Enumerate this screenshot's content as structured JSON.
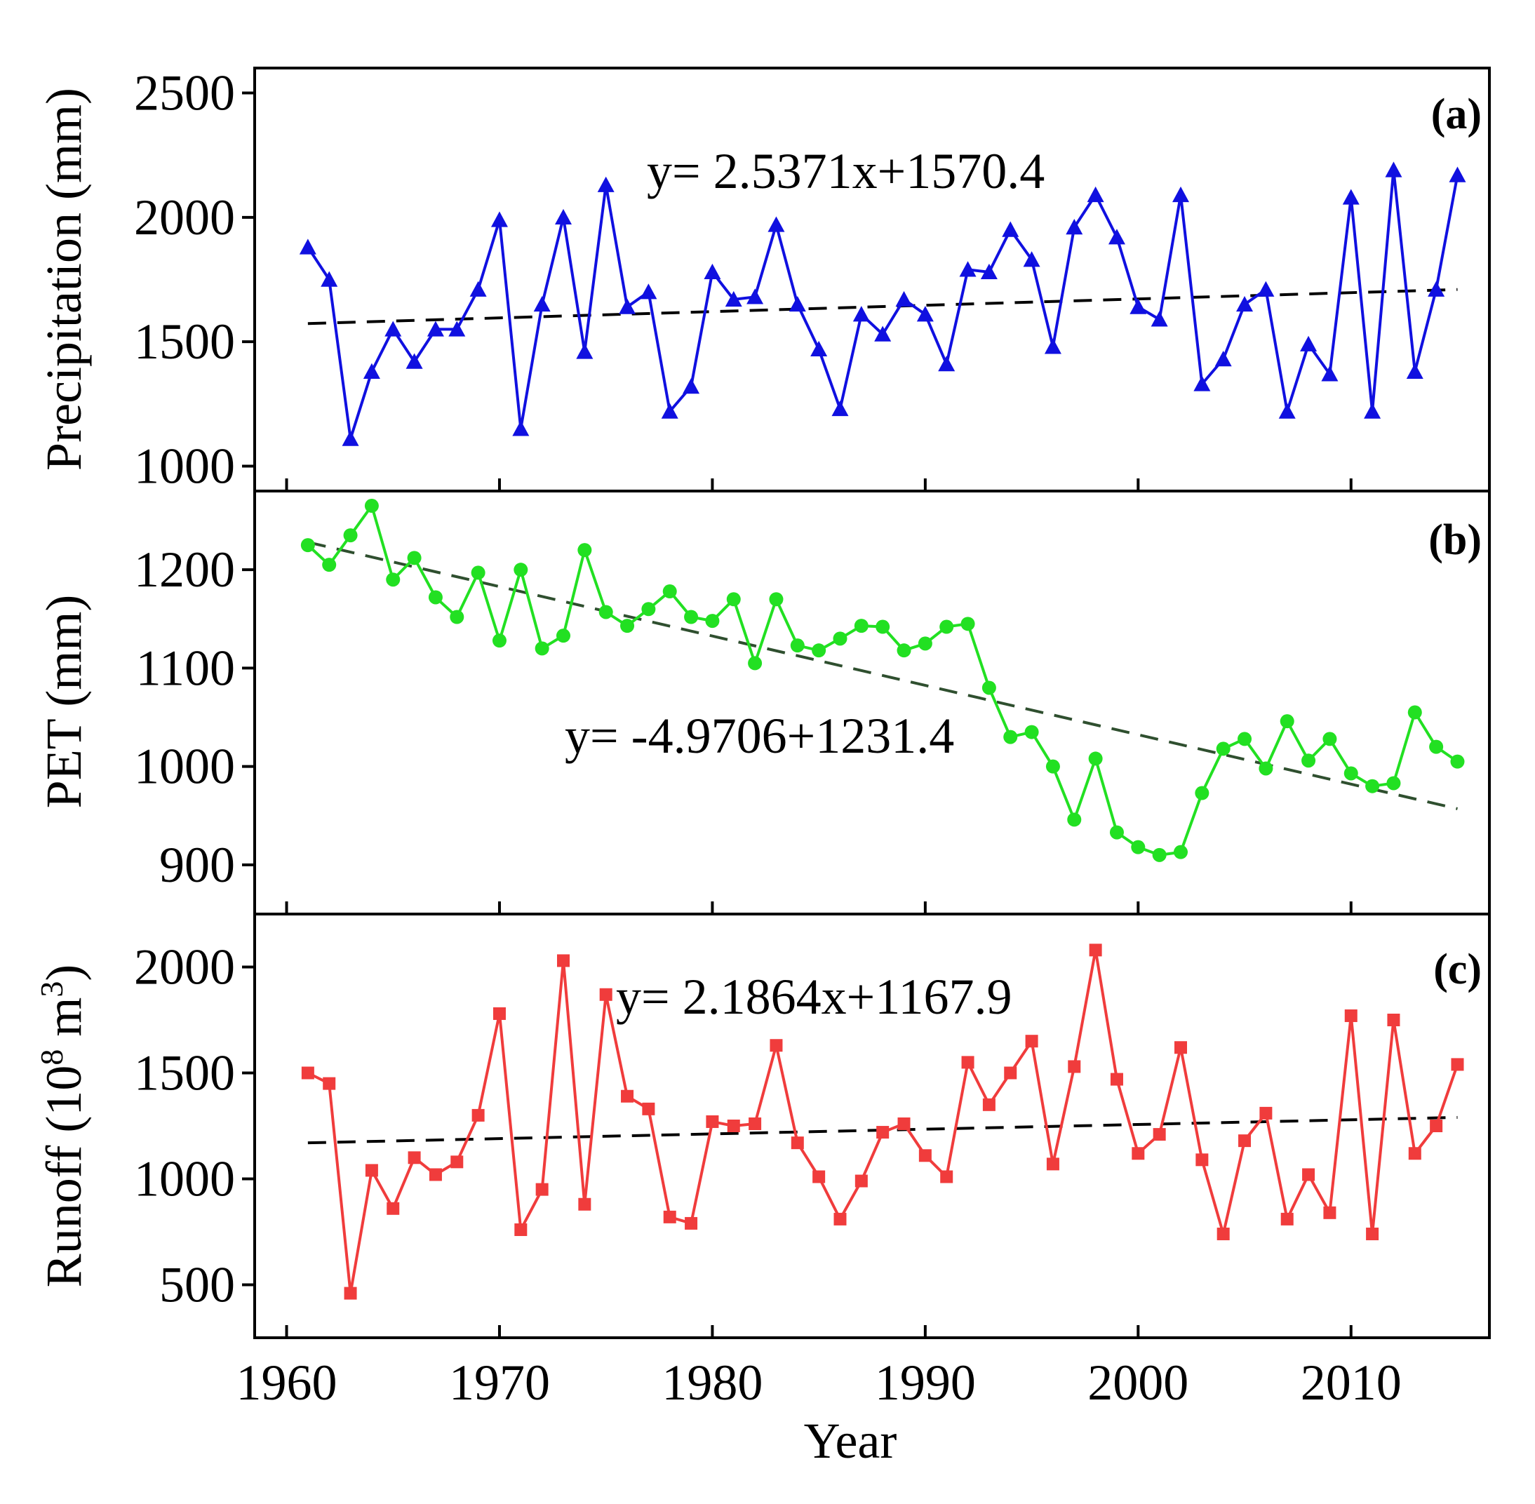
{
  "chart_data": {
    "type": "line",
    "xlabel": "Year",
    "x_ticks": [
      1960,
      1970,
      1980,
      1990,
      2000,
      2010
    ],
    "xlim": [
      1958.5,
      2016.5
    ],
    "x": [
      1961,
      1962,
      1963,
      1964,
      1965,
      1966,
      1967,
      1968,
      1969,
      1970,
      1971,
      1972,
      1973,
      1974,
      1975,
      1976,
      1977,
      1978,
      1979,
      1980,
      1981,
      1982,
      1983,
      1984,
      1985,
      1986,
      1987,
      1988,
      1989,
      1990,
      1991,
      1992,
      1993,
      1994,
      1995,
      1996,
      1997,
      1998,
      1999,
      2000,
      2001,
      2002,
      2003,
      2004,
      2005,
      2006,
      2007,
      2008,
      2009,
      2010,
      2011,
      2012,
      2013,
      2014,
      2015
    ],
    "panels": [
      {
        "label": "(a)",
        "ylabel": "Precipitation (mm)",
        "ylim": [
          900,
          2600
        ],
        "y_ticks": [
          1000,
          1500,
          2000,
          2500
        ],
        "marker": "triangle",
        "color": "#1010e0",
        "trend_color": "#000000",
        "equation": "y= 2.5371x+1570.4",
        "trend": {
          "start": [
            1961,
            1573
          ],
          "end": [
            2015,
            1710
          ]
        },
        "values": [
          1880,
          1750,
          1110,
          1380,
          1550,
          1420,
          1550,
          1550,
          1710,
          1990,
          1150,
          1650,
          2000,
          1460,
          2130,
          1640,
          1700,
          1220,
          1320,
          1780,
          1670,
          1680,
          1970,
          1650,
          1470,
          1230,
          1610,
          1530,
          1670,
          1610,
          1410,
          1790,
          1780,
          1950,
          1830,
          1480,
          1960,
          2090,
          1920,
          1640,
          1590,
          2090,
          1330,
          1430,
          1650,
          1710,
          1220,
          1490,
          1370,
          2080,
          1220,
          2190,
          1380,
          1710,
          2170
        ]
      },
      {
        "label": "(b)",
        "ylabel": "PET (mm)",
        "ylim": [
          850,
          1280
        ],
        "y_ticks": [
          900,
          1000,
          1100,
          1200
        ],
        "marker": "circle",
        "color": "#22e022",
        "trend_color": "#2f4f2f",
        "equation": "y= -4.9706+1231.4",
        "trend": {
          "start": [
            1961,
            1228
          ],
          "end": [
            2015,
            957
          ]
        },
        "values": [
          1225,
          1205,
          1235,
          1265,
          1190,
          1212,
          1172,
          1152,
          1197,
          1128,
          1200,
          1120,
          1133,
          1220,
          1157,
          1143,
          1160,
          1178,
          1152,
          1148,
          1170,
          1105,
          1170,
          1123,
          1118,
          1130,
          1143,
          1142,
          1118,
          1125,
          1142,
          1145,
          1080,
          1030,
          1035,
          1000,
          946,
          1008,
          933,
          918,
          910,
          913,
          973,
          1018,
          1028,
          998,
          1046,
          1006,
          1028,
          993,
          980,
          983,
          1055,
          1020,
          1005
        ]
      },
      {
        "label": "(c)",
        "ylabel_main": "Runoff (10",
        "ylabel_sup1": "8",
        "ylabel_mid": " m",
        "ylabel_sup2": "3",
        "ylabel_end": ")",
        "ylim": [
          250,
          2250
        ],
        "y_ticks": [
          500,
          1000,
          1500,
          2000
        ],
        "marker": "square",
        "color": "#f03c3c",
        "trend_color": "#000000",
        "equation": "y= 2.1864x+1167.9",
        "trend": {
          "start": [
            1961,
            1170
          ],
          "end": [
            2015,
            1290
          ]
        },
        "values": [
          1500,
          1450,
          460,
          1040,
          860,
          1100,
          1020,
          1080,
          1300,
          1780,
          760,
          950,
          2030,
          880,
          1870,
          1390,
          1330,
          820,
          790,
          1270,
          1250,
          1260,
          1630,
          1170,
          1010,
          810,
          990,
          1220,
          1260,
          1110,
          1010,
          1550,
          1350,
          1500,
          1650,
          1070,
          1530,
          2080,
          1470,
          1120,
          1210,
          1620,
          1090,
          740,
          1180,
          1310,
          810,
          1020,
          840,
          1770,
          740,
          1750,
          1120,
          1250,
          1540
        ]
      }
    ]
  }
}
